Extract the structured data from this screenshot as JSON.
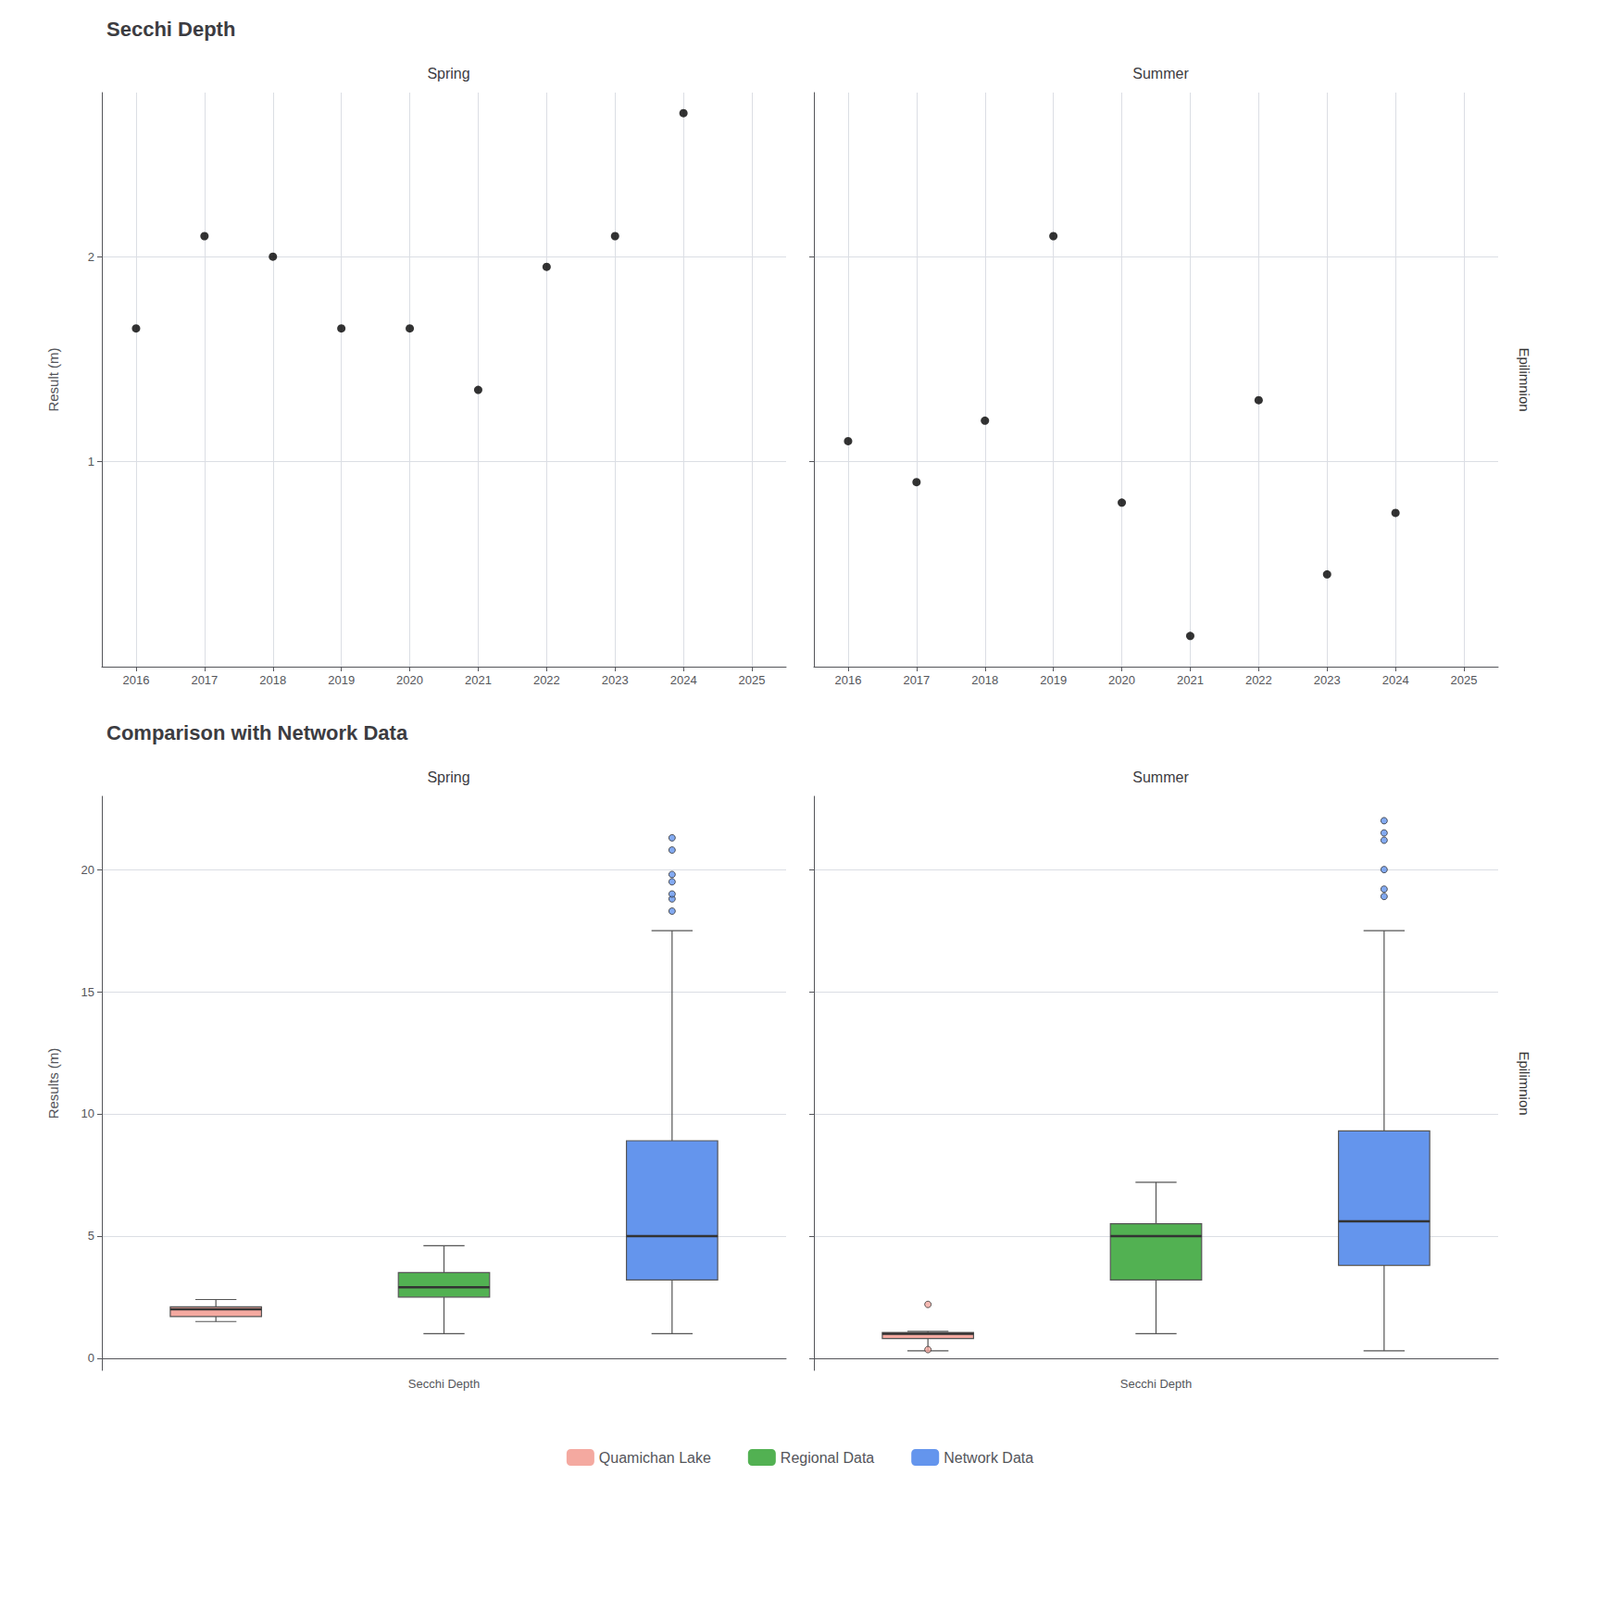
{
  "chart_data": [
    {
      "type": "scatter",
      "title": "Secchi Depth",
      "subtitle": "Spring",
      "ylabel": "Result (m)",
      "x": [
        2016,
        2017,
        2018,
        2019,
        2020,
        2021,
        2022,
        2023,
        2024
      ],
      "values": [
        1.65,
        2.1,
        2.0,
        1.65,
        1.65,
        1.35,
        1.95,
        2.1,
        2.7
      ],
      "color": "#000000",
      "xlim": [
        2015.5,
        2025.5
      ],
      "xticks": [
        2016,
        2017,
        2018,
        2019,
        2020,
        2021,
        2022,
        2023,
        2024,
        2025
      ],
      "ylim": [
        0.0,
        2.8
      ],
      "yticks": [
        1,
        2
      ],
      "grid": true
    },
    {
      "type": "scatter",
      "subtitle": "Summer",
      "annotation": "Epilimnion",
      "x": [
        2016,
        2017,
        2018,
        2019,
        2020,
        2021,
        2022,
        2023,
        2024
      ],
      "values": [
        1.1,
        0.9,
        1.2,
        2.1,
        0.8,
        0.15,
        1.3,
        0.45,
        0.75
      ],
      "color": "#000000",
      "xlim": [
        2015.5,
        2025.5
      ],
      "xticks": [
        2016,
        2017,
        2018,
        2019,
        2020,
        2021,
        2022,
        2023,
        2024,
        2025
      ],
      "ylim": [
        0.0,
        2.8
      ],
      "yticks": [
        1,
        2
      ],
      "grid": true,
      "tick_labels": "x"
    },
    {
      "type": "box",
      "title": "Comparison with Network Data",
      "subtitle": "Spring",
      "ylabel": "Results (m)",
      "categories": [
        null,
        "Secchi Depth",
        null
      ],
      "series": [
        {
          "name": "Quamichan Lake",
          "color": "#f4a9a0",
          "whislo": 1.5,
          "q1": 1.7,
          "med": 2.0,
          "q3": 2.1,
          "whishi": 2.4,
          "fliers": []
        },
        {
          "name": "Regional Data",
          "color": "#52b152",
          "whislo": 1.0,
          "q1": 2.5,
          "med": 2.9,
          "q3": 3.5,
          "whishi": 4.6,
          "fliers": []
        },
        {
          "name": "Network Data",
          "color": "#6495ed",
          "whislo": 1.0,
          "q1": 3.2,
          "med": 5.0,
          "q3": 8.9,
          "whishi": 17.5,
          "fliers": [
            18.3,
            18.8,
            19.0,
            19.5,
            19.8,
            20.8,
            21.3
          ]
        }
      ],
      "ylim": [
        -0.5,
        23
      ],
      "yticks": [
        0,
        5,
        10,
        15,
        20
      ],
      "grid": "y",
      "legend": "bottom"
    },
    {
      "type": "box",
      "subtitle": "Summer",
      "annotation": "Epilimnion",
      "categories": [
        null,
        "Secchi Depth",
        null
      ],
      "series": [
        {
          "name": "Quamichan Lake",
          "color": "#f4a9a0",
          "whislo": 0.3,
          "q1": 0.8,
          "med": 1.0,
          "q3": 1.05,
          "whishi": 1.1,
          "fliers": [
            2.2,
            0.35
          ]
        },
        {
          "name": "Regional Data",
          "color": "#52b152",
          "whislo": 1.0,
          "q1": 3.2,
          "med": 5.0,
          "q3": 5.5,
          "whishi": 7.2,
          "fliers": []
        },
        {
          "name": "Network Data",
          "color": "#6495ed",
          "whislo": 0.3,
          "q1": 3.8,
          "med": 5.6,
          "q3": 9.3,
          "whishi": 17.5,
          "fliers": [
            18.9,
            19.2,
            20.0,
            21.2,
            21.5,
            22.0
          ]
        }
      ],
      "ylim": [
        -0.5,
        23
      ],
      "yticks": [
        0,
        5,
        10,
        15,
        20
      ],
      "grid": "y",
      "tick_labels": "x",
      "legend": "bottom"
    }
  ]
}
